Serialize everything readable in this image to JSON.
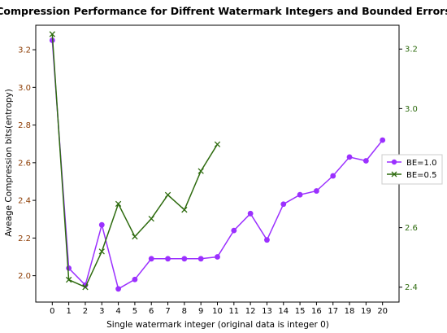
{
  "chart_data": {
    "type": "line",
    "title": "Compression Performance for Diffrent Watermark Integers and Bounded Errors",
    "xlabel": "Single watermark integer (original data is integer 0)",
    "ylabel": "Aveage Compression bits(entropy)",
    "ylabel_right": "",
    "x": [
      0,
      1,
      2,
      3,
      4,
      5,
      6,
      7,
      8,
      9,
      10,
      11,
      12,
      13,
      14,
      15,
      16,
      17,
      18,
      19,
      20
    ],
    "x_ticks": [
      "0",
      "1",
      "2",
      "3",
      "4",
      "5",
      "6",
      "7",
      "8",
      "9",
      "10",
      "11",
      "12",
      "13",
      "14",
      "15",
      "16",
      "17",
      "18",
      "19",
      "20"
    ],
    "xlim": [
      -1.0,
      21.0
    ],
    "ylim_left": [
      1.86,
      3.33
    ],
    "ylim_right": [
      2.35,
      3.28
    ],
    "y_ticks_left": [
      "2.0",
      "2.2",
      "2.4",
      "2.6",
      "2.8",
      "3.0",
      "3.2"
    ],
    "y_ticks_right": [
      "2.4",
      "2.6",
      "2.8",
      "3.0",
      "3.2"
    ],
    "grid": false,
    "legend_position": "right",
    "series": [
      {
        "name": "BE=1.0",
        "axis": "left",
        "marker": "circle",
        "color": "#9b30ff",
        "x": [
          0,
          1,
          2,
          3,
          4,
          5,
          6,
          7,
          8,
          9,
          10,
          11,
          12,
          13,
          14,
          15,
          16,
          17,
          18,
          19,
          20
        ],
        "values": [
          3.25,
          2.04,
          1.95,
          2.27,
          1.93,
          1.98,
          2.09,
          2.09,
          2.09,
          2.09,
          2.1,
          2.24,
          2.33,
          2.19,
          2.38,
          2.43,
          2.45,
          2.53,
          2.63,
          2.61,
          2.72
        ]
      },
      {
        "name": "BE=0.5",
        "axis": "right",
        "marker": "x",
        "color": "#2e6b0f",
        "x": [
          0,
          1,
          2,
          3,
          4,
          5,
          6,
          7,
          8,
          9,
          10
        ],
        "values": [
          3.25,
          2.425,
          2.4,
          2.52,
          2.68,
          2.57,
          2.63,
          2.71,
          2.66,
          2.79,
          2.88
        ]
      }
    ],
    "left_tick_color": "#8b3a00",
    "right_tick_color": "#2e6b0f"
  }
}
